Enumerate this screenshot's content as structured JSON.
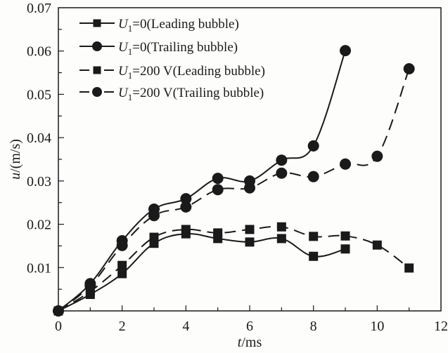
{
  "chart_data": {
    "type": "line",
    "title": "",
    "xlabel": "t/ms",
    "xlabel_italic": "t",
    "xlabel_rest": "/ms",
    "ylabel": "u/(m/s)",
    "ylabel_italic": "u",
    "ylabel_rest": "/(m/s)",
    "xlim": [
      0,
      12
    ],
    "ylim": [
      0,
      0.07
    ],
    "xticks": [
      0,
      2,
      4,
      6,
      8,
      10,
      12
    ],
    "xtick_labels": [
      "0",
      "2",
      "4",
      "6",
      "8",
      "10",
      "12"
    ],
    "x_minor_step": 1,
    "yticks": [
      0.01,
      0.02,
      0.03,
      0.04,
      0.05,
      0.06,
      0.07
    ],
    "ytick_labels": [
      "0.01",
      "0.02",
      "0.03",
      "0.04",
      "0.05",
      "0.06",
      "0.07"
    ],
    "y_minor_step": 0.005,
    "grid": false,
    "legend_position": "top-left",
    "series": [
      {
        "name": "U1=0(Leading bubble)",
        "legend_var": "U",
        "legend_sub": "1",
        "legend_rest": "=0(Leading bubble)",
        "line_style": "solid",
        "marker": "square",
        "x": [
          0,
          1,
          2,
          3,
          4,
          5,
          6,
          7,
          8,
          9
        ],
        "values": [
          0,
          0.0038,
          0.0086,
          0.0156,
          0.0178,
          0.0167,
          0.0159,
          0.0167,
          0.0126,
          0.0143
        ]
      },
      {
        "name": "U1=0(Trailing bubble)",
        "legend_var": "U",
        "legend_sub": "1",
        "legend_rest": "=0(Trailing bubble)",
        "line_style": "solid",
        "marker": "circle",
        "x": [
          0,
          1,
          2,
          3,
          4,
          5,
          6,
          7,
          8,
          9
        ],
        "values": [
          0,
          0.0063,
          0.0162,
          0.0235,
          0.0259,
          0.0306,
          0.03,
          0.0348,
          0.0381,
          0.0601
        ]
      },
      {
        "name": "U1=200 V(Leading bubble)",
        "legend_var": "U",
        "legend_sub": "1",
        "legend_rest": "=200 V(Leading bubble)",
        "line_style": "dashed",
        "marker": "square",
        "x": [
          0,
          1,
          2,
          3,
          4,
          5,
          6,
          7,
          8,
          9,
          10,
          11
        ],
        "values": [
          0,
          0.0045,
          0.0105,
          0.017,
          0.0188,
          0.018,
          0.0188,
          0.0194,
          0.0172,
          0.0173,
          0.0152,
          0.0099
        ]
      },
      {
        "name": "U1=200 V(Trailing bubble)",
        "legend_var": "U",
        "legend_sub": "1",
        "legend_rest": "=200 V(Trailing bubble)",
        "line_style": "dashed",
        "marker": "circle",
        "x": [
          0,
          1,
          2,
          3,
          4,
          5,
          6,
          7,
          8,
          9,
          10,
          11
        ],
        "values": [
          0,
          0.0058,
          0.0151,
          0.022,
          0.024,
          0.028,
          0.0284,
          0.0318,
          0.031,
          0.0339,
          0.0357,
          0.0559
        ]
      }
    ],
    "colors": {
      "ink": "#1a1a1a",
      "background": "#fdfdfb"
    }
  }
}
